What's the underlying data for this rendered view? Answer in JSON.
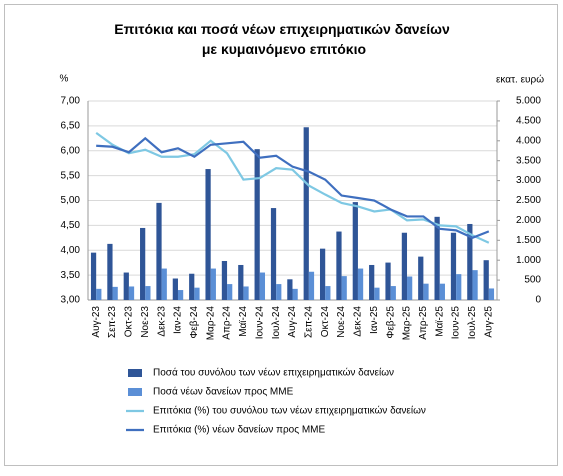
{
  "chart_data": {
    "type": "bar-line",
    "title": "Επιτόκια και ποσά νέων επιχειρηματικών δανείων με κυμαινόμενο επιτόκιο",
    "y_label": "%",
    "y2_label": "εκατ. ευρώ",
    "categories": [
      "Αυγ-23",
      "Σεπ-23",
      "Οκτ-23",
      "Νοε-23",
      "Δεκ-23",
      "Ιαν-24",
      "Φεβ-24",
      "Μαρ-24",
      "Απρ-24",
      "Μαϊ-24",
      "Ιουν-24",
      "Ιουλ-24",
      "Αυγ-24",
      "Σεπ-24",
      "Οκτ-24",
      "Νοε-24",
      "Δεκ-24",
      "Ιαν-25",
      "Φεβ-25",
      "Μαρ-25",
      "Απρ-25",
      "Μαϊ-25",
      "Ιουν-25",
      "Ιουλ-25",
      "Αυγ-25"
    ],
    "series": [
      {
        "name": "Ποσά του συνόλου των νέων επιχειρηματικών δανείων",
        "kind": "bar",
        "axis": "y2",
        "color": "#2f5597",
        "values": [
          1190,
          1410,
          690,
          1810,
          2440,
          540,
          660,
          3290,
          980,
          880,
          3790,
          2310,
          520,
          4340,
          1290,
          1720,
          2460,
          880,
          940,
          1690,
          1090,
          2090,
          1690,
          1910,
          1000
        ]
      },
      {
        "name": "Ποσά νέων δανείων προς ΜΜΕ",
        "kind": "bar",
        "axis": "y2",
        "color": "#5b8fd6",
        "values": [
          280,
          330,
          340,
          350,
          790,
          250,
          310,
          790,
          400,
          340,
          690,
          400,
          280,
          710,
          350,
          600,
          790,
          310,
          350,
          590,
          410,
          410,
          650,
          750,
          290
        ]
      },
      {
        "name": "Επιτόκια (%) του συνόλου των νέων επιχειρηματικών δανείων",
        "kind": "line",
        "axis": "y",
        "color": "#7ec8e3",
        "values": [
          6.36,
          6.12,
          5.95,
          6.02,
          5.88,
          5.88,
          5.93,
          6.2,
          5.95,
          5.42,
          5.45,
          5.65,
          5.62,
          5.3,
          5.12,
          4.95,
          4.88,
          4.78,
          4.82,
          4.6,
          4.62,
          4.5,
          4.48,
          4.3,
          4.15
        ]
      },
      {
        "name": "Επιτόκια (%) νέων δανείων προς ΜΜΕ",
        "kind": "line",
        "axis": "y",
        "color": "#3f6fbf",
        "values": [
          6.1,
          6.08,
          5.97,
          6.25,
          5.97,
          6.05,
          5.88,
          6.12,
          6.15,
          6.18,
          5.86,
          5.9,
          5.68,
          5.58,
          5.42,
          5.1,
          5.05,
          5.0,
          4.82,
          4.68,
          4.68,
          4.43,
          4.4,
          4.25,
          4.38
        ]
      }
    ],
    "ylim": [
      3,
      7
    ],
    "yticks": [
      {
        "value": 3,
        "label": "3,00"
      },
      {
        "value": 3.5,
        "label": "3,50"
      },
      {
        "value": 4,
        "label": "4,00"
      },
      {
        "value": 4.5,
        "label": "4,50"
      },
      {
        "value": 5,
        "label": "5,00"
      },
      {
        "value": 5.5,
        "label": "5,50"
      },
      {
        "value": 6,
        "label": "6,00"
      },
      {
        "value": 6.5,
        "label": "6,50"
      },
      {
        "value": 7,
        "label": "7,00"
      }
    ],
    "y2lim": [
      0,
      5000
    ],
    "y2ticks": [
      0,
      500,
      {
        "value": 1000,
        "label": "1.000"
      },
      {
        "value": 1500,
        "label": "1.500"
      },
      {
        "value": 2000,
        "label": "2.000"
      },
      {
        "value": 2500,
        "label": "2.500"
      },
      {
        "value": 3000,
        "label": "3.000"
      },
      {
        "value": 3500,
        "label": "3.500"
      },
      {
        "value": 4000,
        "label": "4.000"
      },
      {
        "value": 4500,
        "label": "4.500"
      },
      {
        "value": 5000,
        "label": "5.000"
      }
    ],
    "grid": true
  }
}
